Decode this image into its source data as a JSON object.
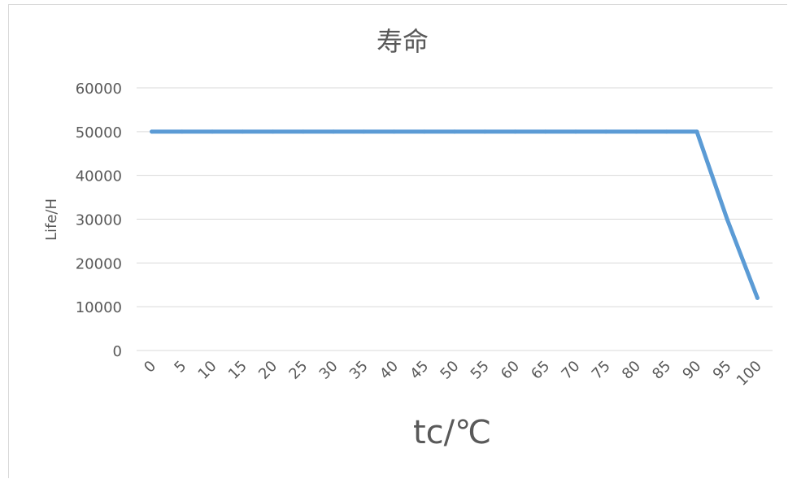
{
  "chart_data": {
    "type": "line",
    "title": "寿命",
    "xlabel": "tc/℃",
    "ylabel": "Life/H",
    "categories": [
      "0",
      "5",
      "10",
      "15",
      "20",
      "25",
      "30",
      "35",
      "40",
      "45",
      "50",
      "55",
      "60",
      "65",
      "70",
      "75",
      "80",
      "85",
      "90",
      "95",
      "100"
    ],
    "series": [
      {
        "values": [
          50000,
          50000,
          50000,
          50000,
          50000,
          50000,
          50000,
          50000,
          50000,
          50000,
          50000,
          50000,
          50000,
          50000,
          50000,
          50000,
          50000,
          50000,
          50000,
          30000,
          12000
        ],
        "color": "#5b9bd5"
      }
    ],
    "ylim": [
      0,
      60000
    ],
    "yticks": [
      0,
      10000,
      20000,
      30000,
      40000,
      50000,
      60000
    ],
    "grid": true,
    "legend": "none"
  }
}
